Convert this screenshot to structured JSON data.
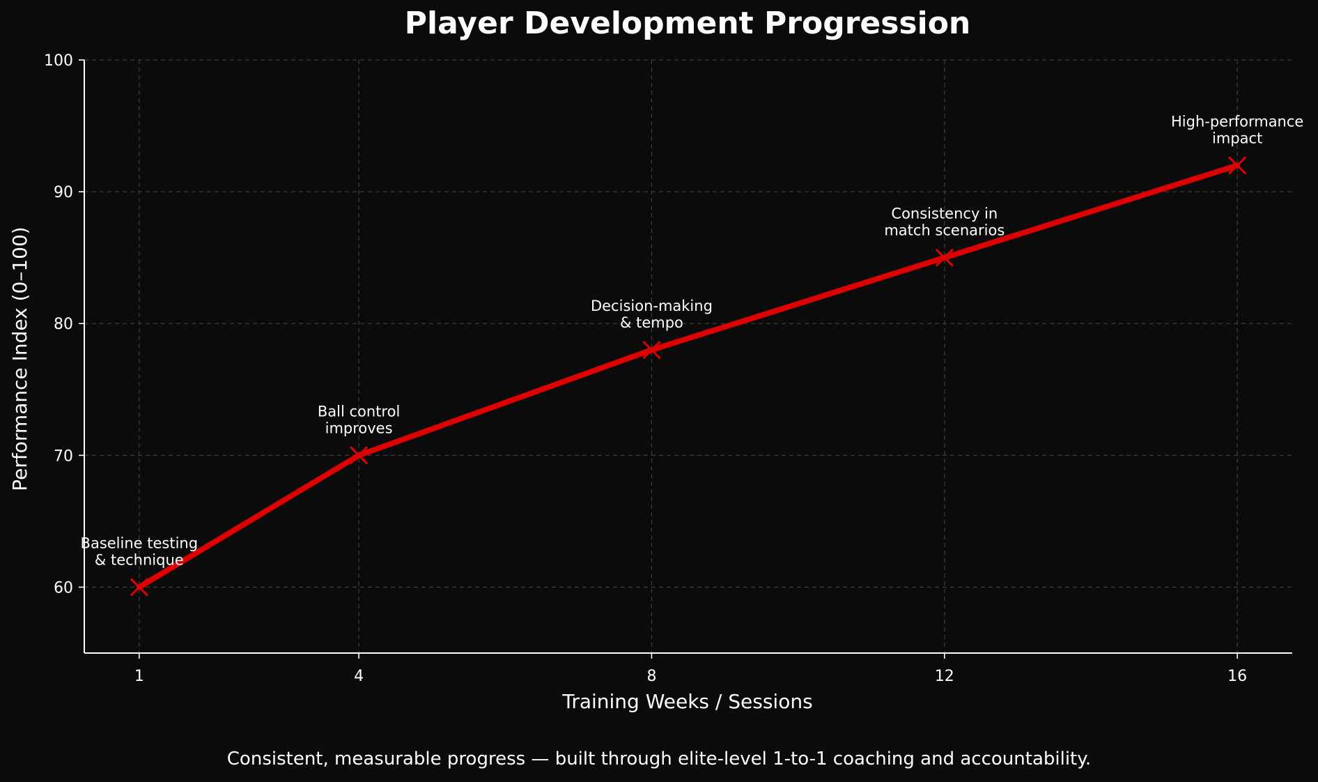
{
  "chart_data": {
    "type": "line",
    "title": "Player Development Progression",
    "xlabel": "Training Weeks / Sessions",
    "ylabel": "Performance Index (0–100)",
    "x": [
      1,
      4,
      8,
      12,
      16
    ],
    "xticks": [
      1,
      4,
      8,
      12,
      16
    ],
    "yticks": [
      60,
      70,
      80,
      90,
      100
    ],
    "xlim": [
      0.25,
      16.75
    ],
    "ylim": [
      55,
      100
    ],
    "grid": true,
    "series": [
      {
        "values": [
          60,
          70,
          78,
          85,
          92
        ],
        "color": "#dd0000",
        "marker": "x"
      }
    ],
    "annotations": [
      {
        "x": 1,
        "y": 60,
        "lines": [
          "Baseline testing",
          "& technique"
        ]
      },
      {
        "x": 4,
        "y": 70,
        "lines": [
          "Ball control",
          "improves"
        ]
      },
      {
        "x": 8,
        "y": 78,
        "lines": [
          "Decision-making",
          "& tempo"
        ]
      },
      {
        "x": 12,
        "y": 85,
        "lines": [
          "Consistency in",
          "match scenarios"
        ]
      },
      {
        "x": 16,
        "y": 92,
        "lines": [
          "High-performance",
          "impact"
        ]
      }
    ]
  },
  "caption": "Consistent, measurable progress — built through elite-level 1-to-1 coaching and accountability.",
  "colors": {
    "background": "#0b0b0b",
    "line": "#dd0000",
    "text": "#ffffff",
    "grid": "#3a3a3a"
  }
}
